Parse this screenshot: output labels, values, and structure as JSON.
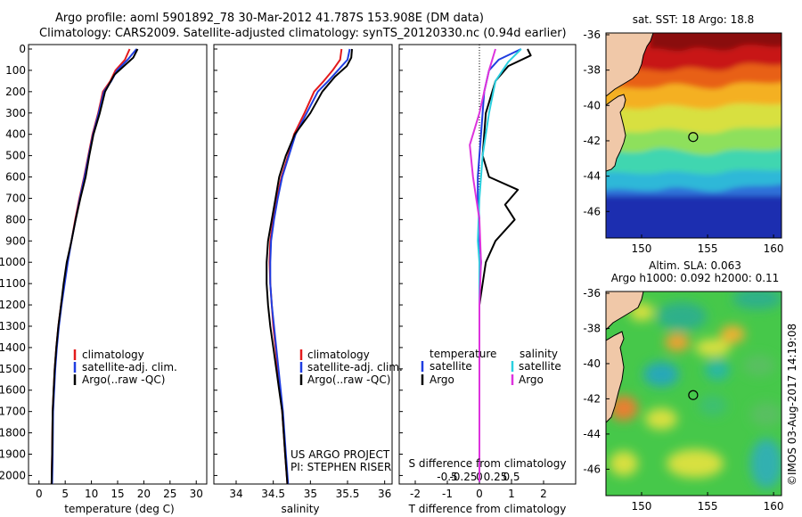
{
  "title": {
    "line1": "Argo profile: aoml 5901892_78 30-Mar-2012 41.787S 153.908E (DM data)",
    "line2": "Climatology: CARS2009. Satellite-adjusted climatology: synTS_20120330.nc (0.94d earlier)"
  },
  "colors": {
    "climatology": "#e31a1c",
    "satellite": "#1f3de0",
    "argo": "#000000",
    "sal_satellite": "#2ad0e0",
    "sal_argo": "#dd33dd"
  },
  "depth_axis": {
    "ticks": [
      0,
      100,
      200,
      300,
      400,
      500,
      600,
      700,
      800,
      900,
      1000,
      1100,
      1200,
      1300,
      1400,
      1500,
      1600,
      1700,
      1800,
      1900,
      2000
    ],
    "range": [
      0,
      2060
    ]
  },
  "chart_data": [
    {
      "type": "line",
      "panel": "temperature",
      "xlabel": "temperature (deg C)",
      "xlim": [
        -2,
        32
      ],
      "xticks": [
        0,
        5,
        10,
        15,
        20,
        25,
        30
      ],
      "ylim": [
        2060,
        0
      ],
      "legend": [
        "climatology",
        "satellite-adj. clim.",
        "Argo(..raw -QC)"
      ],
      "series": [
        {
          "name": "climatology",
          "color_key": "climatology",
          "x": [
            17.3,
            16.4,
            14.6,
            13.6,
            12.2,
            11.3,
            10.2,
            9.4,
            8.6,
            7.7,
            6.9,
            6.2,
            5.4,
            4.8,
            4.2,
            3.7,
            3.3,
            3.0,
            2.8,
            2.6,
            2.5,
            2.4
          ],
          "y": [
            0,
            50,
            100,
            150,
            200,
            300,
            400,
            500,
            600,
            700,
            800,
            900,
            1000,
            1100,
            1200,
            1300,
            1400,
            1500,
            1600,
            1700,
            1900,
            2040
          ]
        },
        {
          "name": "satellite-adj. clim.",
          "color_key": "satellite",
          "x": [
            18.6,
            16.9,
            14.9,
            13.8,
            12.4,
            11.4,
            10.3,
            9.5,
            8.7,
            7.8,
            7.0,
            6.2,
            5.5,
            4.9,
            4.3,
            3.8,
            3.4,
            3.1,
            2.9,
            2.7,
            2.6,
            2.5
          ],
          "y": [
            0,
            50,
            100,
            150,
            200,
            300,
            400,
            500,
            600,
            700,
            800,
            900,
            1000,
            1100,
            1200,
            1300,
            1400,
            1500,
            1600,
            1700,
            1900,
            2040
          ]
        },
        {
          "name": "Argo(..raw -QC)",
          "color_key": "argo",
          "x": [
            18.8,
            18.0,
            16.2,
            14.4,
            12.6,
            11.6,
            10.4,
            9.6,
            8.9,
            7.9,
            7.0,
            6.2,
            5.3,
            4.7,
            4.2,
            3.7,
            3.3,
            3.0,
            2.8,
            2.6,
            2.5,
            2.4
          ],
          "y": [
            0,
            40,
            80,
            120,
            200,
            300,
            400,
            500,
            600,
            700,
            800,
            900,
            1000,
            1100,
            1200,
            1300,
            1400,
            1500,
            1600,
            1700,
            1900,
            2040
          ]
        }
      ]
    },
    {
      "type": "line",
      "panel": "salinity",
      "xlabel": "salinity",
      "xlim": [
        33.7,
        36.1
      ],
      "xticks": [
        34,
        34.5,
        35,
        35.5,
        36
      ],
      "xticklabels": [
        "34",
        "34.5",
        "35",
        "35.5",
        "36"
      ],
      "ylim": [
        2060,
        0
      ],
      "legend": [
        "climatology",
        "satellite-adj. clim.",
        "Argo(..raw -QC)"
      ],
      "annotation_line1": "US ARGO PROJECT",
      "annotation_line2": "PI: STEPHEN RISER",
      "series": [
        {
          "name": "climatology",
          "color_key": "climatology",
          "x": [
            35.42,
            35.4,
            35.3,
            35.18,
            35.05,
            34.92,
            34.78,
            34.7,
            34.61,
            34.55,
            34.5,
            34.46,
            34.45,
            34.46,
            34.48,
            34.5,
            34.53,
            34.56,
            34.59,
            34.62,
            34.66,
            34.69
          ],
          "y": [
            0,
            50,
            100,
            150,
            200,
            300,
            400,
            500,
            600,
            700,
            800,
            900,
            1000,
            1100,
            1200,
            1300,
            1400,
            1500,
            1600,
            1700,
            1900,
            2040
          ]
        },
        {
          "name": "satellite-adj. clim.",
          "color_key": "satellite",
          "x": [
            35.53,
            35.5,
            35.37,
            35.24,
            35.1,
            34.95,
            34.8,
            34.71,
            34.62,
            34.56,
            34.51,
            34.47,
            34.46,
            34.46,
            34.48,
            34.51,
            34.54,
            34.57,
            34.6,
            34.63,
            34.67,
            34.7
          ],
          "y": [
            0,
            50,
            100,
            150,
            200,
            300,
            400,
            500,
            600,
            700,
            800,
            900,
            1000,
            1100,
            1200,
            1300,
            1400,
            1500,
            1600,
            1700,
            1900,
            2040
          ]
        },
        {
          "name": "Argo(..raw -QC)",
          "color_key": "argo",
          "x": [
            35.56,
            35.55,
            35.49,
            35.33,
            35.16,
            35.0,
            34.79,
            34.67,
            34.58,
            34.53,
            34.48,
            34.43,
            34.41,
            34.41,
            34.43,
            34.46,
            34.5,
            34.54,
            34.58,
            34.62,
            34.66,
            34.69
          ],
          "y": [
            0,
            40,
            80,
            130,
            200,
            300,
            400,
            500,
            600,
            700,
            800,
            900,
            1000,
            1100,
            1200,
            1300,
            1400,
            1500,
            1600,
            1700,
            1900,
            2040
          ]
        }
      ]
    },
    {
      "type": "line",
      "panel": "difference",
      "xlabel": "T difference from climatology",
      "xlim": [
        -2.5,
        3.0
      ],
      "xticks": [
        -2,
        -1,
        0,
        1,
        2
      ],
      "xticklabels": [
        "-2",
        "-1",
        "0",
        "1",
        "2"
      ],
      "s_axis_label": "S difference from climatology",
      "s_ticks": [
        -0.5,
        -0.25,
        0,
        0.25,
        0.5
      ],
      "s_ticklabels": [
        "-0.5",
        "-0.25",
        "0",
        "0.25",
        "0.5"
      ],
      "ylim": [
        2060,
        0
      ],
      "legend_temperature": "temperature",
      "legend_salinity": "salinity",
      "legend_satellite": "satellite",
      "legend_argo": "Argo",
      "series": [
        {
          "name": "T satellite",
          "color_key": "satellite",
          "x": [
            1.3,
            0.6,
            0.3,
            0.15,
            0.05,
            0.0,
            -0.05,
            -0.05,
            0.0,
            0.0,
            0.05,
            0.0,
            0.0,
            0.0,
            0.0,
            0.0,
            0.0,
            0.0,
            0.0,
            0.0
          ],
          "y": [
            0,
            50,
            100,
            200,
            400,
            500,
            600,
            700,
            800,
            900,
            1000,
            1100,
            1200,
            1300,
            1400,
            1500,
            1600,
            1700,
            1900,
            2030
          ]
        },
        {
          "name": "T Argo",
          "color_key": "argo",
          "x": [
            1.5,
            1.6,
            0.9,
            0.5,
            0.2,
            0.1,
            0.3,
            1.2,
            0.8,
            1.1,
            0.5,
            0.2,
            0.1,
            0.0,
            0.0,
            0.0,
            0.0,
            0.0,
            0.0,
            0.0
          ],
          "y": [
            0,
            30,
            80,
            150,
            300,
            500,
            600,
            660,
            730,
            800,
            900,
            1000,
            1100,
            1200,
            1300,
            1400,
            1600,
            1800,
            1900,
            2030
          ]
        },
        {
          "name": "S satellite",
          "color_key": "sal_satellite",
          "x": [
            1.3,
            0.9,
            0.5,
            0.3,
            0.1,
            0.0,
            -0.05,
            0.0,
            0.0,
            0.0,
            0.0,
            0.0,
            0.0,
            0.0,
            0.0,
            0.0
          ],
          "y": [
            0,
            60,
            150,
            300,
            500,
            700,
            900,
            1000,
            1100,
            1200,
            1300,
            1400,
            1600,
            1800,
            1900,
            2030
          ]
        },
        {
          "name": "S Argo",
          "color_key": "sal_argo",
          "x": [
            0.5,
            0.3,
            0.0,
            -0.3,
            -0.2,
            0.0,
            0.05,
            0.0,
            0.0,
            0.0,
            0.0,
            0.0,
            0.0,
            0.0
          ],
          "y": [
            0,
            100,
            300,
            450,
            600,
            800,
            1000,
            1200,
            1300,
            1400,
            1600,
            1800,
            1900,
            2030
          ]
        }
      ]
    },
    {
      "type": "heatmap",
      "panel": "sst-map",
      "title": "sat. SST: 18 Argo: 18.8",
      "xticks": [
        150,
        155,
        160
      ],
      "yticks": [
        -36,
        -38,
        -40,
        -42,
        -44,
        -46
      ],
      "xlim": [
        147.3,
        160.6
      ],
      "ylim": [
        -47.5,
        -35.9
      ],
      "argo_lon": 153.908,
      "argo_lat": -41.787
    },
    {
      "type": "heatmap",
      "panel": "sla-map",
      "title_line1": "Altim. SLA: 0.063",
      "title_line2": "Argo h1000: 0.092 h2000: 0.11",
      "xticks": [
        150,
        155,
        160
      ],
      "yticks": [
        -36,
        -38,
        -40,
        -42,
        -44,
        -46
      ],
      "xlim": [
        147.3,
        160.6
      ],
      "ylim": [
        -47.5,
        -35.9
      ],
      "argo_lon": 153.908,
      "argo_lat": -41.787
    }
  ],
  "credit": "©IMOS 03-Aug-2017 14:19:08"
}
